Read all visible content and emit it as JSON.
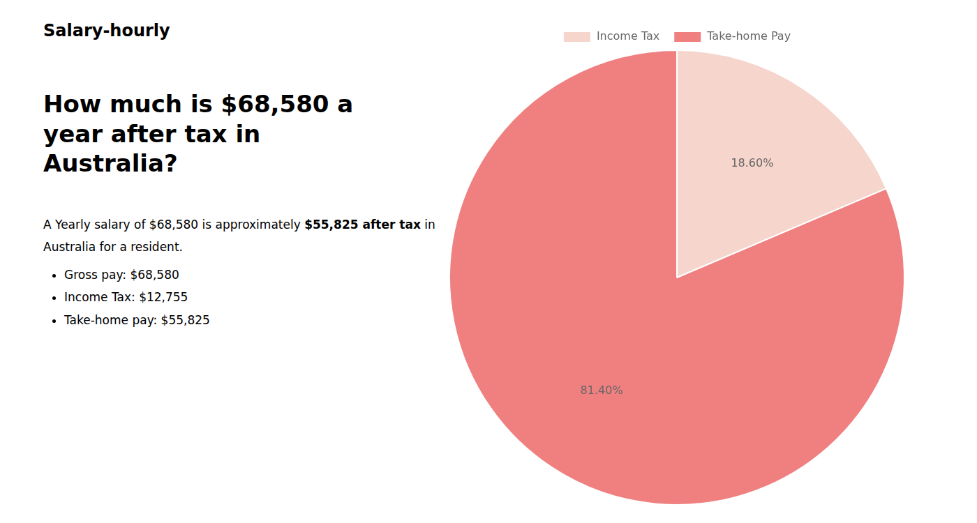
{
  "chart_data": {
    "type": "pie",
    "title": [
      "How much is $68,580 a year after tax in",
      "Australia?"
    ],
    "annotations": [
      [
        "S",
        "alary-hourly"
      ],
      [
        "A Yearly salary of $68,580 is approximately ",
        "$55,825 after tax",
        " in"
      ],
      [
        "Australia for a resident."
      ],
      [
        "Gross pay: $68,580",
        "Income Tax: $12,755",
        "Take-home pay: $55,825"
      ]
    ],
    "categories": [
      "Income Tax",
      "Take-home Pay"
    ],
    "values": [
      18.6,
      81.4
    ],
    "value_labels": [
      "18.60%",
      "81.40%"
    ],
    "colors": [
      "#f5d5cc",
      "#f08080"
    ],
    "data_labels": true,
    "legend": "top"
  }
}
